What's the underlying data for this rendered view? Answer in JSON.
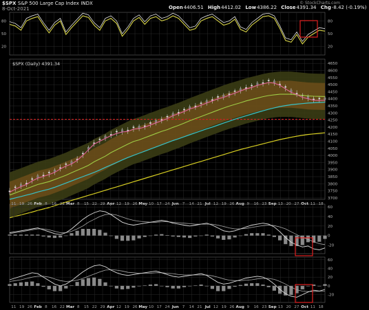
{
  "header": {
    "symbol": "$SPX",
    "name": "S&P 500 Large Cap Index",
    "exchange": "INDX",
    "date": "8-Oct-2021",
    "watermark": "© StockCharts.com",
    "quote": {
      "open_label": "Open",
      "open": "4406.51",
      "high_label": "High",
      "high": "4412.02",
      "low_label": "Low",
      "low": "4386.22",
      "close_label": "Close",
      "close": "4391.34",
      "chg_label": "Chg",
      "chg": "-8.42 (-0.19%)"
    },
    "main_legend": "$SPX (Daily) 4391.34"
  },
  "colors": {
    "bg": "#000000",
    "grid": "#2a2a2a",
    "rsi": "#d6d246",
    "price_up": "#e8e8e8",
    "ma_pink": "#e0649a",
    "ma_green": "#9ecb45",
    "ma_cyan": "#38c2c8",
    "ma_yellow": "#d8cf22",
    "band": "#8a5a1e",
    "env": "#3a3c14",
    "support": "#cc2020",
    "box": "#e02020",
    "hist": "#8a8a8a",
    "macd": "#dddddd"
  },
  "chart_data": [
    {
      "type": "line",
      "panel": "rsi",
      "yticks": [
        80,
        50,
        20
      ],
      "ylim": [
        0,
        100
      ],
      "series": [
        {
          "values": [
            72,
            68,
            58,
            80,
            86,
            90,
            70,
            52,
            70,
            80,
            48,
            64,
            78,
            92,
            88,
            70,
            58,
            80,
            86,
            74,
            44,
            60,
            80,
            88,
            72,
            86,
            90,
            80,
            84,
            92,
            86,
            72,
            58,
            62,
            80,
            86,
            90,
            80,
            70,
            74,
            84,
            60,
            54,
            70,
            80,
            90,
            92,
            86,
            62,
            34,
            30,
            48,
            26,
            42,
            50,
            58,
            56
          ]
        }
      ]
    },
    {
      "type": "line",
      "panel": "price",
      "yticks": [
        4650,
        4600,
        4550,
        4500,
        4450,
        4400,
        4350,
        4300,
        4250,
        4200,
        4150,
        4100,
        4050,
        4000,
        3950,
        3900,
        3850,
        3800,
        3750,
        3700
      ],
      "ylim": [
        3690,
        4680
      ],
      "support_level": 4255,
      "ma_short": [
        3750,
        3772,
        3790,
        3805,
        3830,
        3850,
        3862,
        3875,
        3890,
        3915,
        3935,
        3950,
        3975,
        4010,
        4050,
        4090,
        4110,
        4130,
        4150,
        4165,
        4175,
        4180,
        4195,
        4200,
        4210,
        4225,
        4240,
        4255,
        4270,
        4290,
        4305,
        4320,
        4338,
        4350,
        4365,
        4380,
        4395,
        4410,
        4420,
        4435,
        4450,
        4465,
        4480,
        4490,
        4505,
        4515,
        4525,
        4520,
        4505,
        4480,
        4455,
        4440,
        4420,
        4410,
        4400,
        4398,
        4400
      ],
      "ma_mid": [
        3720,
        3735,
        3750,
        3765,
        3780,
        3795,
        3805,
        3815,
        3830,
        3845,
        3860,
        3878,
        3895,
        3912,
        3930,
        3955,
        3975,
        3995,
        4020,
        4040,
        4060,
        4080,
        4098,
        4110,
        4125,
        4140,
        4155,
        4170,
        4182,
        4198,
        4212,
        4228,
        4245,
        4260,
        4275,
        4290,
        4305,
        4320,
        4335,
        4348,
        4360,
        4372,
        4385,
        4395,
        4405,
        4415,
        4423,
        4428,
        4432,
        4432,
        4432,
        4428,
        4424,
        4420,
        4418,
        4417,
        4416
      ],
      "ma_long": [
        3690,
        3700,
        3710,
        3720,
        3730,
        3742,
        3752,
        3762,
        3775,
        3790,
        3805,
        3820,
        3835,
        3850,
        3865,
        3880,
        3897,
        3915,
        3932,
        3950,
        3968,
        3985,
        4000,
        4015,
        4030,
        4045,
        4060,
        4075,
        4090,
        4105,
        4118,
        4132,
        4146,
        4160,
        4174,
        4188,
        4200,
        4214,
        4228,
        4242,
        4256,
        4268,
        4280,
        4292,
        4304,
        4315,
        4326,
        4336,
        4345,
        4352,
        4358,
        4362,
        4366,
        4370,
        4372,
        4374,
        4376
      ],
      "ma_yellow": [
        3560,
        3570,
        3580,
        3590,
        3600,
        3612,
        3622,
        3632,
        3645,
        3658,
        3670,
        3682,
        3694,
        3706,
        3718,
        3730,
        3742,
        3754,
        3766,
        3778,
        3790,
        3802,
        3814,
        3826,
        3838,
        3850,
        3862,
        3874,
        3886,
        3898,
        3910,
        3922,
        3934,
        3946,
        3958,
        3970,
        3982,
        3994,
        4006,
        4018,
        4030,
        4042,
        4052,
        4062,
        4072,
        4082,
        4092,
        4102,
        4112,
        4120,
        4128,
        4136,
        4142,
        4148,
        4152,
        4156,
        4160
      ]
    },
    {
      "type": "bar",
      "panel": "macd-1",
      "yticks": [
        60,
        40,
        20,
        0,
        -20
      ],
      "ylim": [
        -38,
        66
      ],
      "macd": [
        6,
        8,
        10,
        12,
        14,
        16,
        12,
        8,
        4,
        2,
        6,
        14,
        24,
        34,
        42,
        48,
        52,
        50,
        44,
        36,
        28,
        24,
        22,
        24,
        26,
        28,
        30,
        32,
        30,
        26,
        24,
        22,
        20,
        22,
        24,
        26,
        22,
        16,
        10,
        8,
        10,
        14,
        18,
        22,
        24,
        26,
        24,
        18,
        8,
        -4,
        -14,
        -20,
        -24,
        -22,
        -28,
        -30,
        -26
      ],
      "signal": [
        4,
        6,
        8,
        10,
        12,
        14,
        14,
        12,
        9,
        6,
        6,
        9,
        14,
        20,
        28,
        34,
        40,
        44,
        45,
        43,
        39,
        35,
        32,
        30,
        29,
        28,
        28,
        29,
        29,
        28,
        27,
        26,
        25,
        24,
        24,
        24,
        24,
        22,
        19,
        16,
        14,
        14,
        15,
        17,
        19,
        21,
        22,
        21,
        18,
        14,
        8,
        2,
        -4,
        -8,
        -13,
        -17,
        -19
      ],
      "hist": [
        2,
        2,
        2,
        2,
        2,
        2,
        -2,
        -4,
        -5,
        -4,
        0,
        5,
        10,
        14,
        14,
        14,
        12,
        6,
        -1,
        -7,
        -11,
        -11,
        -10,
        -6,
        -3,
        0,
        2,
        3,
        1,
        -2,
        -3,
        -4,
        -5,
        -2,
        0,
        2,
        -2,
        -6,
        -9,
        -8,
        -4,
        0,
        3,
        5,
        5,
        5,
        2,
        -3,
        -10,
        -18,
        -22,
        -22,
        -20,
        -14,
        -15,
        -13,
        -7
      ]
    },
    {
      "type": "bar",
      "panel": "macd-2",
      "yticks": [
        60,
        40,
        20,
        0,
        -20
      ],
      "ylim": [
        -38,
        66
      ],
      "macd": [
        14,
        18,
        22,
        26,
        30,
        28,
        20,
        12,
        4,
        0,
        4,
        12,
        22,
        32,
        40,
        46,
        48,
        44,
        36,
        30,
        26,
        24,
        26,
        28,
        30,
        32,
        34,
        30,
        26,
        22,
        20,
        22,
        24,
        26,
        28,
        24,
        16,
        8,
        4,
        6,
        10,
        14,
        18,
        20,
        22,
        20,
        14,
        4,
        -8,
        -18,
        -24,
        -26,
        -20,
        -14,
        -10,
        -12,
        -8
      ],
      "signal": [
        10,
        12,
        14,
        17,
        20,
        22,
        22,
        20,
        16,
        12,
        10,
        11,
        13,
        17,
        22,
        27,
        32,
        36,
        37,
        36,
        34,
        31,
        30,
        29,
        29,
        29,
        30,
        30,
        29,
        28,
        26,
        25,
        25,
        25,
        25,
        25,
        23,
        20,
        16,
        13,
        12,
        12,
        13,
        14,
        16,
        17,
        17,
        15,
        10,
        4,
        -3,
        -9,
        -12,
        -13,
        -13,
        -12,
        -12
      ],
      "hist": [
        4,
        6,
        8,
        9,
        10,
        6,
        -2,
        -8,
        -12,
        -12,
        -6,
        1,
        9,
        15,
        18,
        19,
        16,
        8,
        -1,
        -6,
        -8,
        -7,
        -4,
        -1,
        1,
        3,
        4,
        0,
        -3,
        -6,
        -6,
        -3,
        -1,
        1,
        3,
        -1,
        -7,
        -12,
        -12,
        -7,
        -2,
        2,
        5,
        6,
        6,
        3,
        -3,
        -11,
        -18,
        -22,
        -21,
        -17,
        -8,
        -1,
        3,
        0,
        4
      ]
    }
  ],
  "x_axis": {
    "labels_top": [
      "11",
      "19",
      "26",
      "Feb",
      "8",
      "16",
      "22",
      "Mar",
      "8",
      "15",
      "22",
      "29",
      "Apr",
      "12",
      "19",
      "26",
      "May",
      "10",
      "17",
      "24",
      "Jun",
      "7",
      "14",
      "21",
      "Jul",
      "12",
      "19",
      "26",
      "Aug",
      "9",
      "16",
      "23",
      "Sep",
      "13",
      "20",
      "27",
      "Oct",
      "11",
      "18"
    ]
  }
}
